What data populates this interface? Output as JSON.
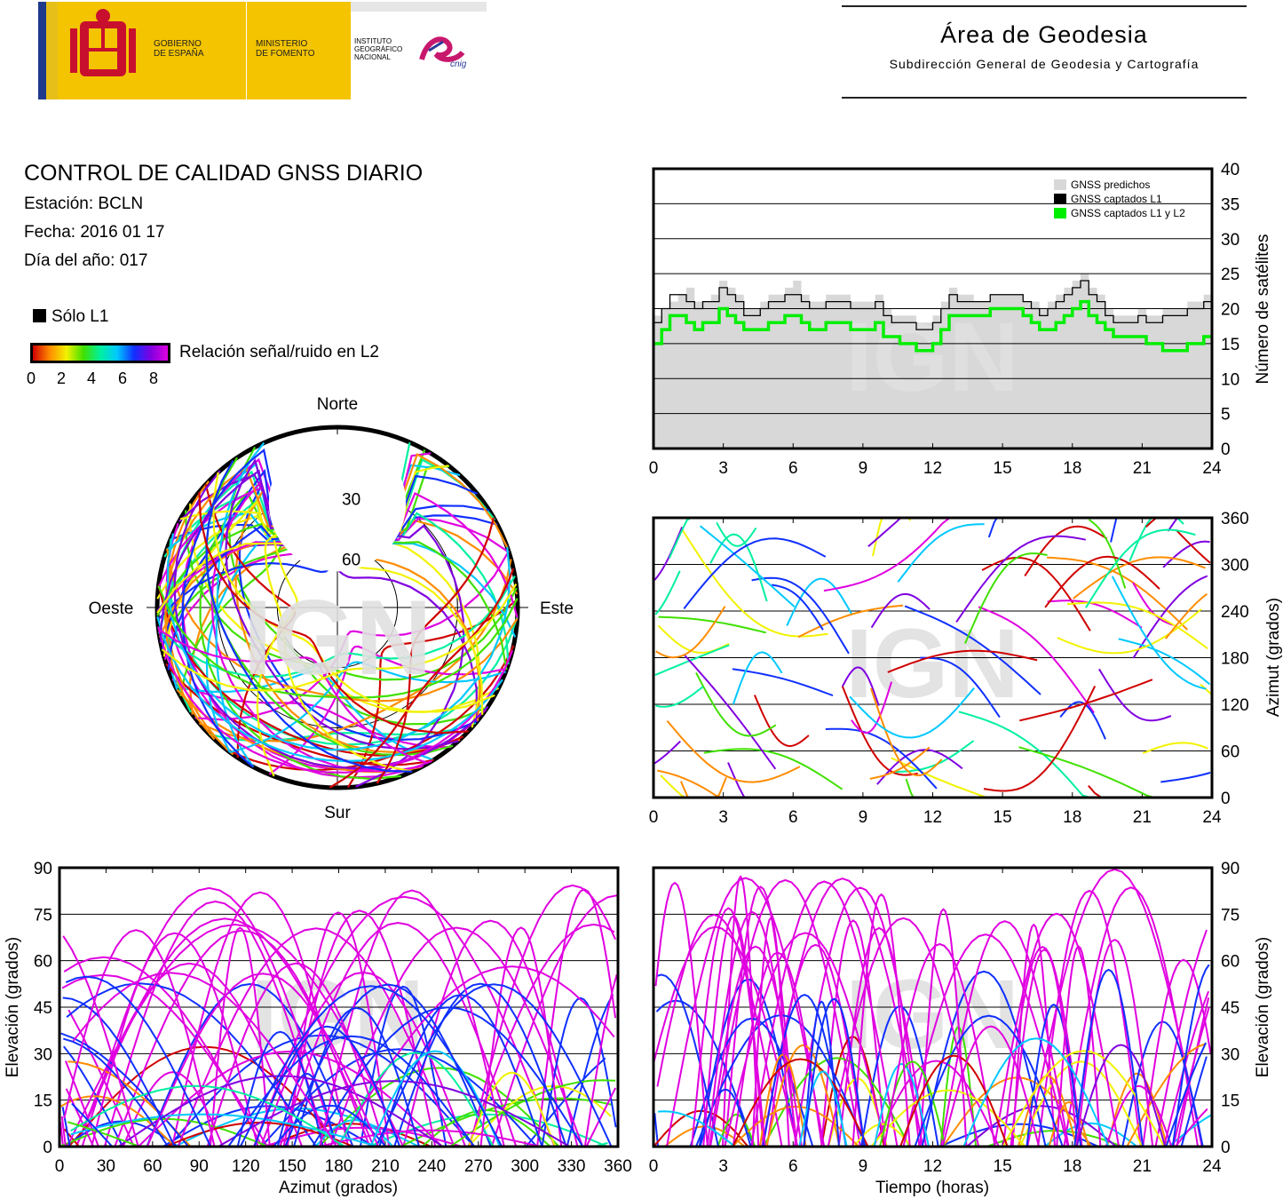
{
  "header": {
    "gobierno": [
      "GOBIERNO",
      "DE ESPAÑA"
    ],
    "ministerio": [
      "MINISTERIO",
      "DE FOMENTO"
    ],
    "instituto": [
      "INSTITUTO",
      "GEOGRÁFICO",
      "NACIONAL"
    ],
    "cnig": "cnig",
    "area_title": "Área de Geodesia",
    "area_subtitle": "Subdirección General de Geodesia y Cartografía"
  },
  "info": {
    "title": "CONTROL DE CALIDAD GNSS DIARIO",
    "station": "Estación: BCLN",
    "date": "Fecha: 2016 01 17",
    "doy": "Día del año: 017"
  },
  "legend": {
    "only_l1": "Sólo L1",
    "snr_label": "Relación señal/ruido en L2",
    "colorbar_ticks": [
      "0",
      "2",
      "4",
      "6",
      "8"
    ],
    "colors": [
      "#d00000",
      "#ff8c00",
      "#f2f200",
      "#40e000",
      "#00f0a0",
      "#00c8ff",
      "#1030ff",
      "#8000e0",
      "#e000e0"
    ]
  },
  "watermark": "IGN",
  "chart_data": [
    {
      "type": "polar",
      "id": "skyplot",
      "directions": {
        "north": "Norte",
        "south": "Sur",
        "east": "Este",
        "west": "Oeste"
      },
      "elevation_ticks": [
        "30",
        "60"
      ]
    },
    {
      "type": "line",
      "id": "sats",
      "ylabel": "Número de satélites",
      "xlim": [
        0,
        24
      ],
      "ylim": [
        0,
        40
      ],
      "x_ticks": [
        "0",
        "3",
        "6",
        "9",
        "12",
        "15",
        "18",
        "21",
        "24"
      ],
      "y_ticks": [
        "0",
        "5",
        "10",
        "15",
        "20",
        "25",
        "30",
        "35",
        "40"
      ],
      "grid": true,
      "legend_position": "top-right",
      "series": [
        {
          "name": "GNSS predichos",
          "color": "#d8d8d8",
          "values": [
            19,
            20,
            21,
            22,
            23,
            21,
            21,
            22,
            24,
            23,
            22,
            20,
            20,
            21,
            22,
            22,
            23,
            24,
            22,
            21,
            21,
            22,
            22,
            22,
            21,
            21,
            21,
            22,
            20,
            19,
            19,
            19,
            18,
            18,
            19,
            21,
            23,
            22,
            22,
            21,
            21,
            22,
            22,
            22,
            22,
            21,
            21,
            20,
            21,
            22,
            23,
            24,
            25,
            23,
            22,
            20,
            19,
            19,
            19,
            20,
            19,
            19,
            20,
            20,
            20,
            21,
            21,
            22
          ]
        },
        {
          "name": "GNSS captados L1",
          "color": "#000000",
          "values": [
            18,
            20,
            22,
            22,
            21,
            20,
            21,
            21,
            23,
            22,
            21,
            19,
            19,
            20,
            21,
            21,
            22,
            22,
            21,
            20,
            20,
            21,
            21,
            21,
            20,
            20,
            20,
            21,
            19,
            18,
            18,
            18,
            17,
            17,
            18,
            20,
            22,
            21,
            21,
            21,
            21,
            22,
            22,
            22,
            22,
            21,
            20,
            19,
            20,
            21,
            22,
            23,
            24,
            22,
            21,
            19,
            18,
            18,
            18,
            19,
            18,
            18,
            19,
            19,
            19,
            20,
            20,
            21
          ]
        },
        {
          "name": "GNSS captados L1 y L2",
          "color": "#00ee00",
          "values": [
            15,
            17,
            19,
            19,
            18,
            17,
            18,
            18,
            20,
            19,
            18,
            17,
            17,
            17,
            18,
            18,
            19,
            19,
            18,
            17,
            17,
            18,
            18,
            18,
            17,
            17,
            17,
            18,
            16,
            16,
            15,
            15,
            14,
            14,
            15,
            17,
            19,
            19,
            19,
            19,
            19,
            20,
            20,
            20,
            20,
            19,
            18,
            17,
            17,
            18,
            19,
            20,
            21,
            19,
            18,
            17,
            16,
            16,
            16,
            16,
            15,
            15,
            14,
            14,
            14,
            15,
            15,
            16
          ]
        }
      ]
    },
    {
      "type": "scatter",
      "id": "azimut_time",
      "ylabel": "Azimut (grados)",
      "xlim": [
        0,
        24
      ],
      "ylim": [
        0,
        360
      ],
      "x_ticks": [
        "0",
        "3",
        "6",
        "9",
        "12",
        "15",
        "18",
        "21",
        "24"
      ],
      "y_ticks": [
        "0",
        "60",
        "120",
        "180",
        "240",
        "300",
        "360"
      ],
      "grid": true
    },
    {
      "type": "scatter",
      "id": "elev_az",
      "xlabel": "Azimut (grados)",
      "ylabel": "Elevación (grados)",
      "xlim": [
        0,
        360
      ],
      "ylim": [
        0,
        90
      ],
      "x_ticks": [
        "0",
        "30",
        "60",
        "90",
        "120",
        "150",
        "180",
        "210",
        "240",
        "270",
        "300",
        "330",
        "360"
      ],
      "y_ticks": [
        "0",
        "15",
        "30",
        "45",
        "60",
        "75",
        "90"
      ],
      "grid": true
    },
    {
      "type": "scatter",
      "id": "elev_time",
      "xlabel": "Tiempo (horas)",
      "ylabel": "Elevación (grados)",
      "xlim": [
        0,
        24
      ],
      "ylim": [
        0,
        90
      ],
      "x_ticks": [
        "0",
        "3",
        "6",
        "9",
        "12",
        "15",
        "18",
        "21",
        "24"
      ],
      "y_ticks": [
        "0",
        "15",
        "30",
        "45",
        "60",
        "75",
        "90"
      ],
      "grid": true
    }
  ]
}
